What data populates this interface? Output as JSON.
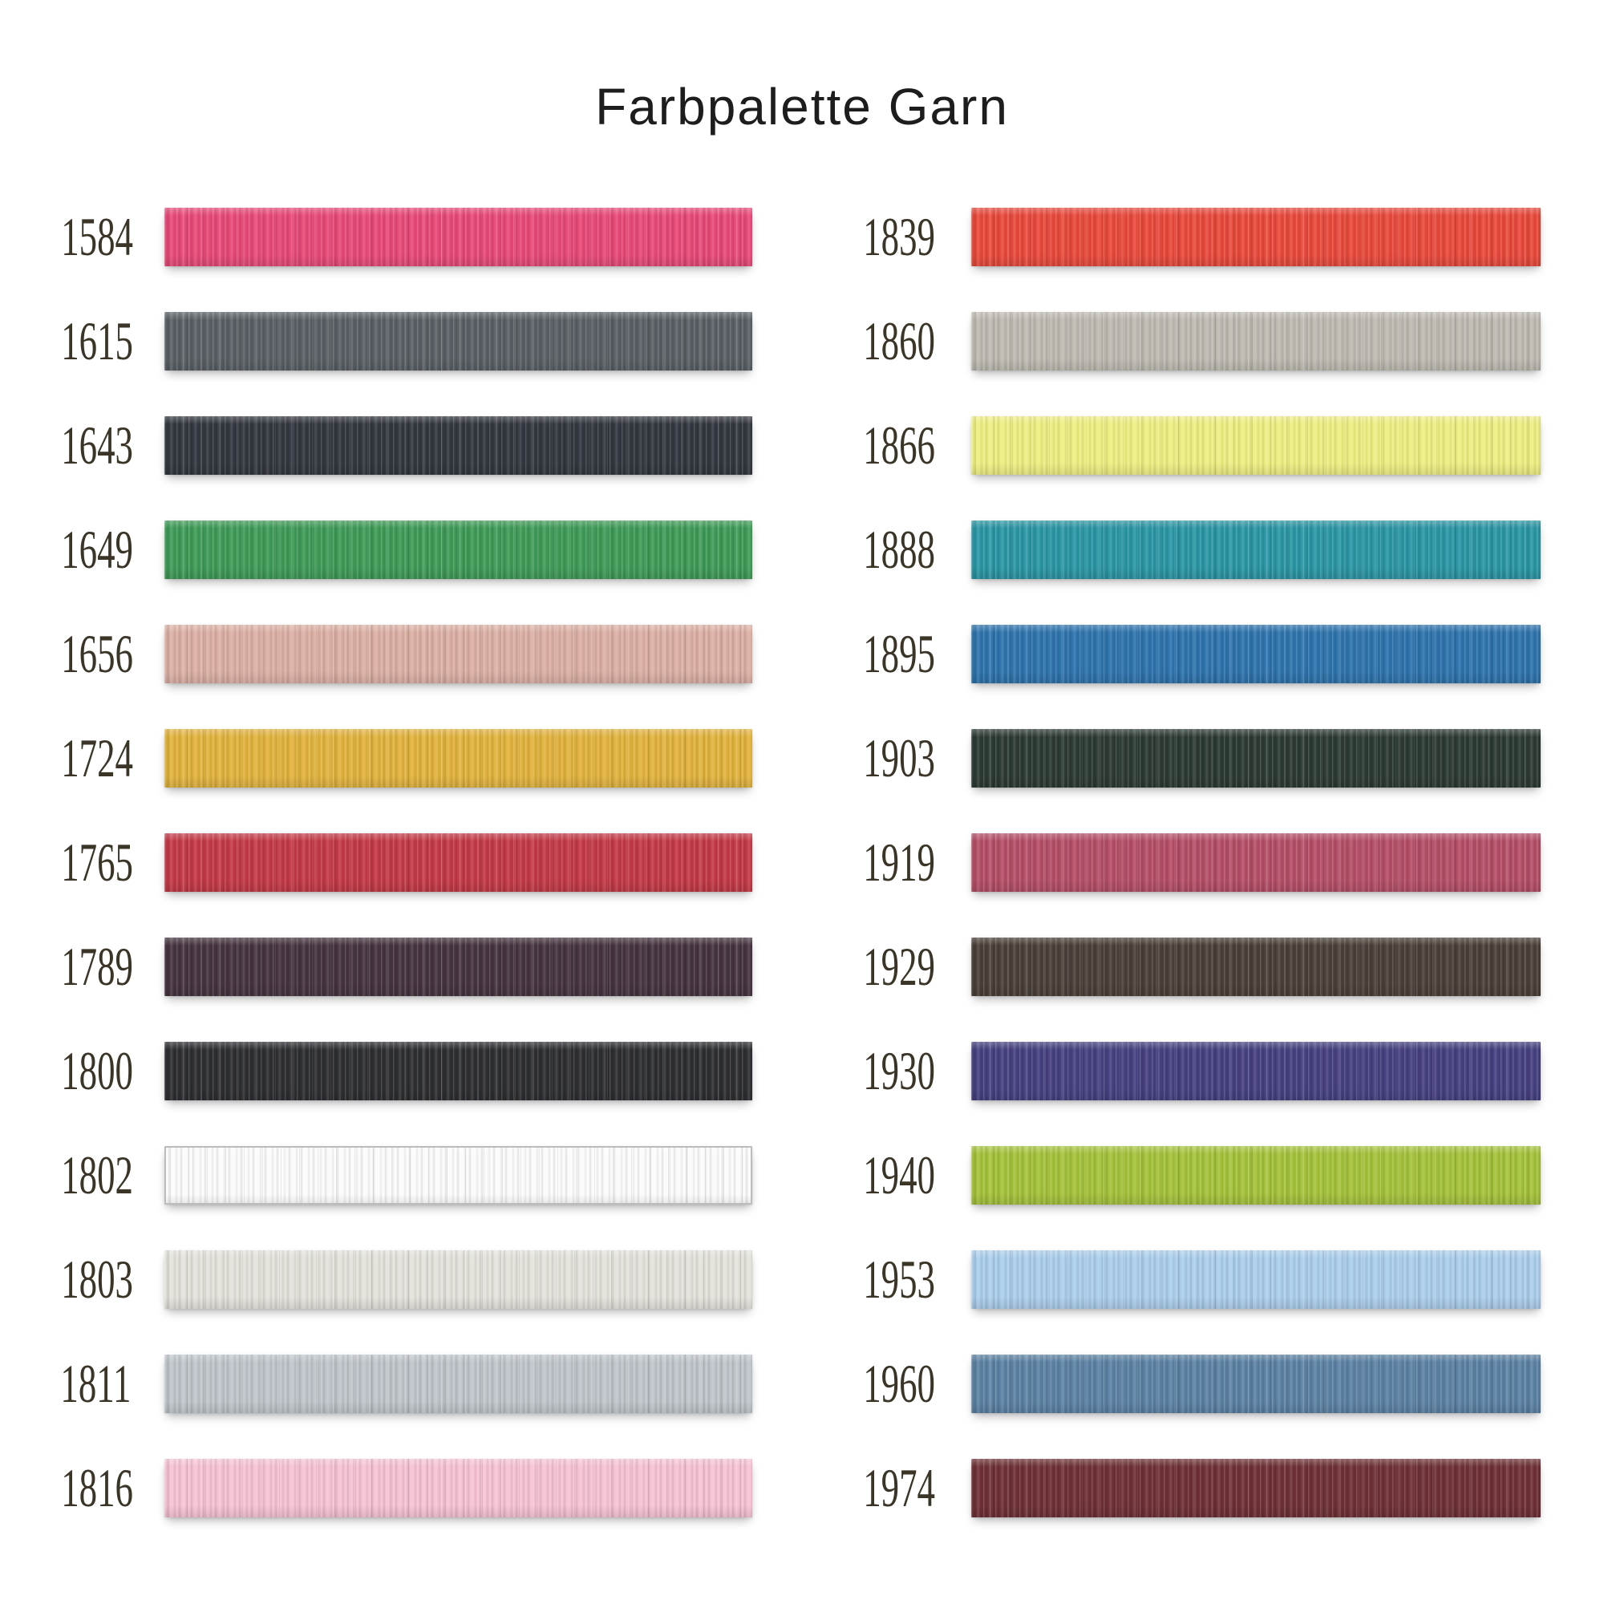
{
  "title": "Farbpalette Garn",
  "theme": {
    "title_color": "#1d1d1d",
    "label_color": "#3b3528",
    "background": "#ffffff"
  },
  "columns": {
    "left": [
      {
        "code": "1584",
        "color": "#e74a78"
      },
      {
        "code": "1615",
        "color": "#5a6065"
      },
      {
        "code": "1643",
        "color": "#33373f"
      },
      {
        "code": "1649",
        "color": "#3f9b57"
      },
      {
        "code": "1656",
        "color": "#dbb0a4"
      },
      {
        "code": "1724",
        "color": "#e1b33e"
      },
      {
        "code": "1765",
        "color": "#c33a47"
      },
      {
        "code": "1789",
        "color": "#463440"
      },
      {
        "code": "1800",
        "color": "#2e2f32"
      },
      {
        "code": "1802",
        "color": "#fbfbfb",
        "border": "#bcbcbc"
      },
      {
        "code": "1803",
        "color": "#e3e2db"
      },
      {
        "code": "1811",
        "color": "#bfc5ca"
      },
      {
        "code": "1816",
        "color": "#f6c2d3"
      }
    ],
    "right": [
      {
        "code": "1839",
        "color": "#e84a3c"
      },
      {
        "code": "1860",
        "color": "#bebab1"
      },
      {
        "code": "1866",
        "color": "#eeee82"
      },
      {
        "code": "1888",
        "color": "#2b96a4"
      },
      {
        "code": "1895",
        "color": "#2e74ac"
      },
      {
        "code": "1903",
        "color": "#2c3b33"
      },
      {
        "code": "1919",
        "color": "#b44f67"
      },
      {
        "code": "1929",
        "color": "#4a4038"
      },
      {
        "code": "1930",
        "color": "#464180"
      },
      {
        "code": "1940",
        "color": "#a5c23b"
      },
      {
        "code": "1953",
        "color": "#abceeb"
      },
      {
        "code": "1960",
        "color": "#5c82a3"
      },
      {
        "code": "1974",
        "color": "#6e3136"
      }
    ]
  }
}
